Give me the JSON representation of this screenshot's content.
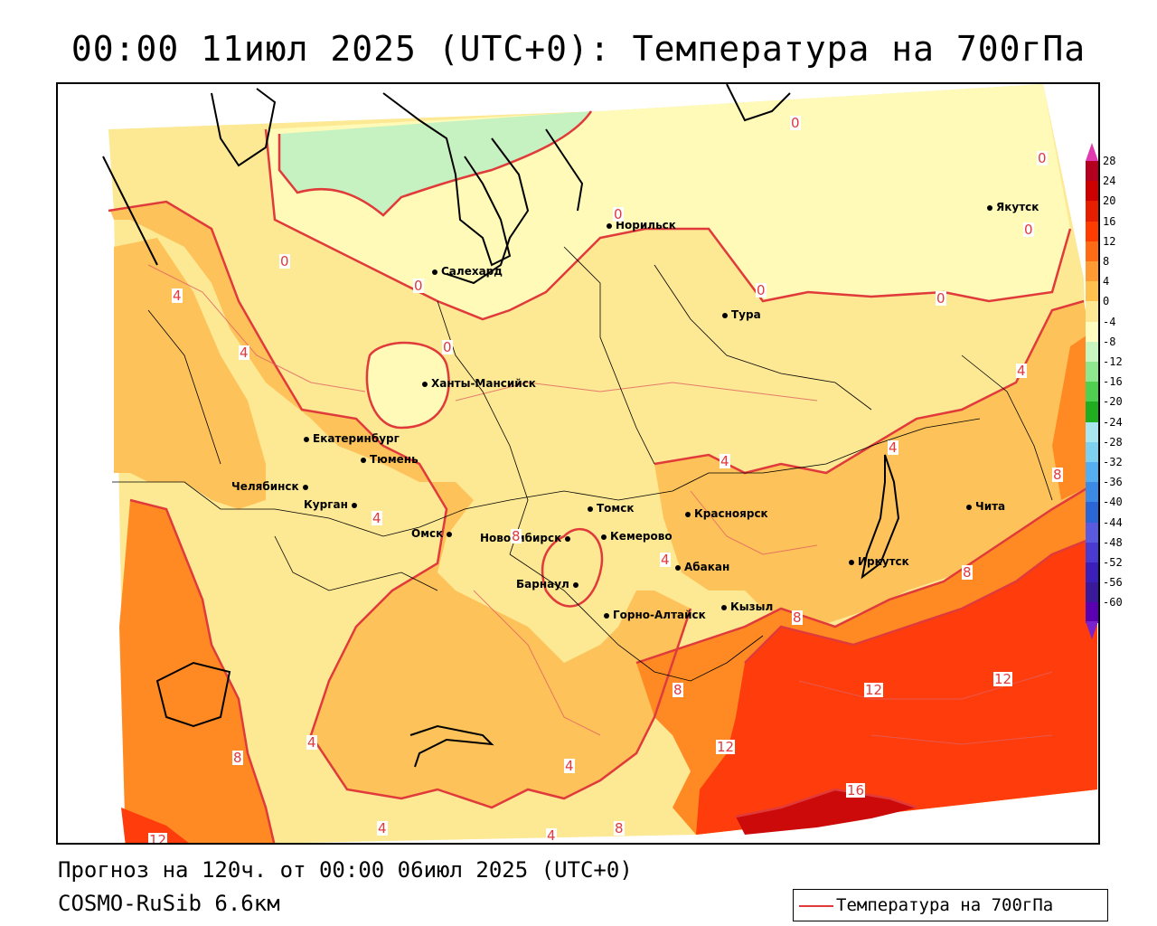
{
  "title": "00:00 11июл 2025 (UTC+0): Температура на 700гПа",
  "forecast_line": "Прогноз на 120ч. от 00:00 06июл 2025 (UTC+0)",
  "model_line": "COSMO-RuSib 6.6км",
  "legend": {
    "line_label": "Температура на 700гПа",
    "line_color": "#e03a3a"
  },
  "cities": [
    {
      "name": "Норильск"
    },
    {
      "name": "Салехард"
    },
    {
      "name": "Тура"
    },
    {
      "name": "Якутск"
    },
    {
      "name": "Ханты-Мансийск"
    },
    {
      "name": "Екатеринбург"
    },
    {
      "name": "Тюмень"
    },
    {
      "name": "Челябинск"
    },
    {
      "name": "Курган"
    },
    {
      "name": "Омск"
    },
    {
      "name": "Томск"
    },
    {
      "name": "Новосибирск"
    },
    {
      "name": "Кемерово"
    },
    {
      "name": "Красноярск"
    },
    {
      "name": "Барнаул"
    },
    {
      "name": "Абакан"
    },
    {
      "name": "Иркутск"
    },
    {
      "name": "Чита"
    },
    {
      "name": "Кызыл"
    },
    {
      "name": "Горно-Алтайск"
    }
  ],
  "contour_labels": [
    "0",
    "0",
    "0",
    "0",
    "0",
    "0",
    "0",
    "0",
    "0",
    "4",
    "4",
    "4",
    "4",
    "4",
    "4",
    "4",
    "4",
    "4",
    "4",
    "4",
    "8",
    "8",
    "8",
    "8",
    "8",
    "8",
    "8",
    "12",
    "12",
    "12",
    "12",
    "16"
  ],
  "colorbar": {
    "ticks": [
      "28",
      "24",
      "20",
      "16",
      "12",
      "8",
      "4",
      "0",
      "-4",
      "-8",
      "-12",
      "-16",
      "-20",
      "-24",
      "-28",
      "-32",
      "-36",
      "-40",
      "-44",
      "-48",
      "-52",
      "-56",
      "-60"
    ],
    "colors": [
      "#b3001e",
      "#cc0000",
      "#e61e00",
      "#ff3c00",
      "#ff6a14",
      "#ff9a33",
      "#ffc04d",
      "#fde894",
      "#fffdc0",
      "#c8f5c0",
      "#8fe88f",
      "#50d050",
      "#1fae1f",
      "#a8e6f0",
      "#7ed0f0",
      "#55aef0",
      "#3a8ae6",
      "#2a66d6",
      "#5a5ae0",
      "#4a3ad0",
      "#3a20b8",
      "#3a1a9a",
      "#5a00b0"
    ],
    "top_arrow_color": "#e03ab0",
    "bottom_arrow_color": "#7a22cc"
  }
}
